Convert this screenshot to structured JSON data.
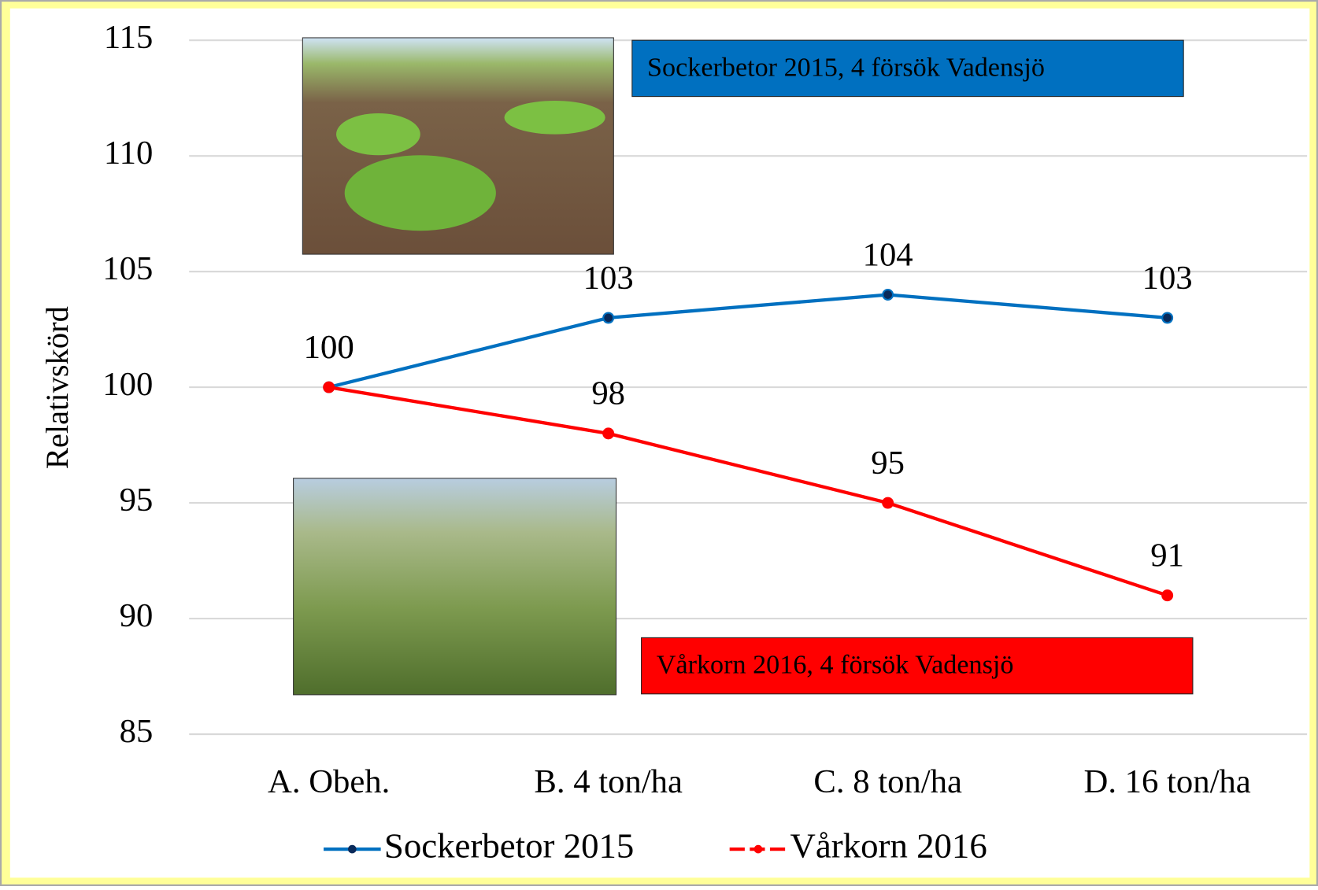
{
  "chart_data": {
    "type": "line",
    "categories": [
      "A. Obeh.",
      "B. 4 ton/ha",
      "C. 8 ton/ha",
      "D. 16 ton/ha"
    ],
    "y_label": "Relativskörd",
    "series": [
      {
        "name": "Sockerbetor 2015",
        "color": "#0070c0",
        "values": [
          100,
          103,
          104,
          103
        ]
      },
      {
        "name": "Vårkorn 2016",
        "color": "#ff0000",
        "values": [
          100,
          98,
          95,
          91
        ]
      }
    ],
    "ylim": [
      85,
      115
    ],
    "yticks": [
      85,
      90,
      95,
      100,
      105,
      110,
      115
    ],
    "grid": true,
    "annotations": [
      "Sockerbetor 2015, 4 försök Vadensjö",
      "Vårkorn 2016, 4 försök Vadensjö"
    ],
    "legend": "bottom"
  }
}
